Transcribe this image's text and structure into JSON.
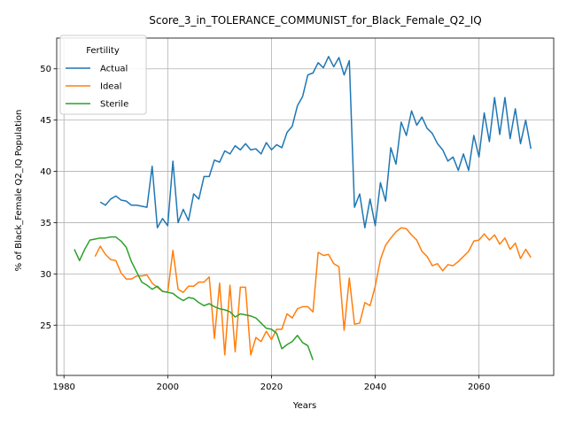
{
  "chart_data": {
    "type": "line",
    "title": "Score_3_in_TOLERANCE_COMMUNIST_for_Black_Female_Q2_IQ",
    "xlabel": "Years",
    "ylabel": "% of Black_Female Q2_IQ Population",
    "xlim": [
      1978.6,
      2074.4
    ],
    "ylim": [
      20.1,
      53.0
    ],
    "xticks": [
      1980,
      2000,
      2020,
      2040,
      2060
    ],
    "yticks": [
      25,
      30,
      35,
      40,
      45,
      50
    ],
    "grid": true,
    "legend": {
      "title": "Fertility",
      "position": "top-left"
    },
    "series": [
      {
        "name": "Actual",
        "color": "#1f77b4",
        "points": [
          [
            1987,
            37.0
          ],
          [
            1988,
            36.7
          ],
          [
            1989,
            37.3
          ],
          [
            1990,
            37.6
          ],
          [
            1991,
            37.2
          ],
          [
            1992,
            37.1
          ],
          [
            1993,
            36.7
          ],
          [
            1994,
            36.7
          ],
          [
            1995,
            36.6
          ],
          [
            1996,
            36.5
          ],
          [
            1997,
            40.5
          ],
          [
            1998,
            34.5
          ],
          [
            1999,
            35.4
          ],
          [
            2000,
            34.7
          ],
          [
            2001,
            41.0
          ],
          [
            2002,
            35.0
          ],
          [
            2003,
            36.3
          ],
          [
            2004,
            35.2
          ],
          [
            2005,
            37.8
          ],
          [
            2006,
            37.3
          ],
          [
            2007,
            39.5
          ],
          [
            2008,
            39.5
          ],
          [
            2009,
            41.1
          ],
          [
            2010,
            40.9
          ],
          [
            2011,
            42.0
          ],
          [
            2012,
            41.7
          ],
          [
            2013,
            42.5
          ],
          [
            2014,
            42.1
          ],
          [
            2015,
            42.7
          ],
          [
            2016,
            42.1
          ],
          [
            2017,
            42.2
          ],
          [
            2018,
            41.7
          ],
          [
            2019,
            42.8
          ],
          [
            2020,
            42.1
          ],
          [
            2021,
            42.6
          ],
          [
            2022,
            42.3
          ],
          [
            2023,
            43.8
          ],
          [
            2024,
            44.4
          ],
          [
            2025,
            46.4
          ],
          [
            2026,
            47.3
          ],
          [
            2027,
            49.4
          ],
          [
            2028,
            49.6
          ],
          [
            2029,
            50.6
          ],
          [
            2030,
            50.1
          ],
          [
            2031,
            51.2
          ],
          [
            2032,
            50.2
          ],
          [
            2033,
            51.1
          ],
          [
            2034,
            49.4
          ],
          [
            2035,
            50.8
          ],
          [
            2036,
            36.5
          ],
          [
            2037,
            37.8
          ],
          [
            2038,
            34.5
          ],
          [
            2039,
            37.3
          ],
          [
            2040,
            34.7
          ],
          [
            2041,
            38.9
          ],
          [
            2042,
            37.1
          ],
          [
            2043,
            42.3
          ],
          [
            2044,
            40.7
          ],
          [
            2045,
            44.8
          ],
          [
            2046,
            43.5
          ],
          [
            2047,
            45.9
          ],
          [
            2048,
            44.5
          ],
          [
            2049,
            45.3
          ],
          [
            2050,
            44.2
          ],
          [
            2051,
            43.7
          ],
          [
            2052,
            42.7
          ],
          [
            2053,
            42.1
          ],
          [
            2054,
            41.0
          ],
          [
            2055,
            41.4
          ],
          [
            2056,
            40.1
          ],
          [
            2057,
            41.7
          ],
          [
            2058,
            40.1
          ],
          [
            2059,
            43.5
          ],
          [
            2060,
            41.4
          ],
          [
            2061,
            45.7
          ],
          [
            2062,
            42.9
          ],
          [
            2063,
            47.2
          ],
          [
            2064,
            43.6
          ],
          [
            2065,
            47.2
          ],
          [
            2066,
            43.2
          ],
          [
            2067,
            46.1
          ],
          [
            2068,
            42.7
          ],
          [
            2069,
            45.0
          ],
          [
            2070,
            42.2
          ]
        ]
      },
      {
        "name": "Ideal",
        "color": "#ff7f0e",
        "points": [
          [
            1986,
            31.7
          ],
          [
            1987,
            32.7
          ],
          [
            1988,
            31.9
          ],
          [
            1989,
            31.4
          ],
          [
            1990,
            31.3
          ],
          [
            1991,
            30.1
          ],
          [
            1992,
            29.5
          ],
          [
            1993,
            29.5
          ],
          [
            1994,
            29.8
          ],
          [
            1995,
            29.8
          ],
          [
            1996,
            29.9
          ],
          [
            1997,
            29.1
          ],
          [
            1998,
            28.7
          ],
          [
            1999,
            28.3
          ],
          [
            2000,
            28.2
          ],
          [
            2001,
            32.3
          ],
          [
            2002,
            28.5
          ],
          [
            2003,
            28.2
          ],
          [
            2004,
            28.8
          ],
          [
            2005,
            28.8
          ],
          [
            2006,
            29.2
          ],
          [
            2007,
            29.2
          ],
          [
            2008,
            29.7
          ],
          [
            2009,
            23.7
          ],
          [
            2010,
            29.1
          ],
          [
            2011,
            22.1
          ],
          [
            2012,
            28.9
          ],
          [
            2013,
            22.4
          ],
          [
            2014,
            28.7
          ],
          [
            2015,
            28.7
          ],
          [
            2016,
            22.1
          ],
          [
            2017,
            23.8
          ],
          [
            2018,
            23.4
          ],
          [
            2019,
            24.4
          ],
          [
            2020,
            23.6
          ],
          [
            2021,
            24.6
          ],
          [
            2022,
            24.6
          ],
          [
            2023,
            26.1
          ],
          [
            2024,
            25.7
          ],
          [
            2025,
            26.6
          ],
          [
            2026,
            26.8
          ],
          [
            2027,
            26.8
          ],
          [
            2028,
            26.3
          ],
          [
            2029,
            32.1
          ],
          [
            2030,
            31.8
          ],
          [
            2031,
            31.9
          ],
          [
            2032,
            31.0
          ],
          [
            2033,
            30.7
          ],
          [
            2034,
            24.5
          ],
          [
            2035,
            29.6
          ],
          [
            2036,
            25.1
          ],
          [
            2037,
            25.2
          ],
          [
            2038,
            27.2
          ],
          [
            2039,
            26.9
          ],
          [
            2040,
            28.8
          ],
          [
            2041,
            31.4
          ],
          [
            2042,
            32.8
          ],
          [
            2043,
            33.5
          ],
          [
            2044,
            34.1
          ],
          [
            2045,
            34.5
          ],
          [
            2046,
            34.4
          ],
          [
            2047,
            33.8
          ],
          [
            2048,
            33.3
          ],
          [
            2049,
            32.2
          ],
          [
            2050,
            31.7
          ],
          [
            2051,
            30.8
          ],
          [
            2052,
            31.0
          ],
          [
            2053,
            30.3
          ],
          [
            2054,
            30.9
          ],
          [
            2055,
            30.8
          ],
          [
            2056,
            31.2
          ],
          [
            2057,
            31.7
          ],
          [
            2058,
            32.2
          ],
          [
            2059,
            33.2
          ],
          [
            2060,
            33.3
          ],
          [
            2061,
            33.9
          ],
          [
            2062,
            33.3
          ],
          [
            2063,
            33.8
          ],
          [
            2064,
            32.9
          ],
          [
            2065,
            33.5
          ],
          [
            2066,
            32.4
          ],
          [
            2067,
            33.0
          ],
          [
            2068,
            31.5
          ],
          [
            2069,
            32.4
          ],
          [
            2070,
            31.6
          ]
        ]
      },
      {
        "name": "Sterile",
        "color": "#2ca02c",
        "points": [
          [
            1982,
            32.4
          ],
          [
            1983,
            31.3
          ],
          [
            1984,
            32.4
          ],
          [
            1985,
            33.3
          ],
          [
            1986,
            33.4
          ],
          [
            1987,
            33.5
          ],
          [
            1988,
            33.5
          ],
          [
            1989,
            33.6
          ],
          [
            1990,
            33.6
          ],
          [
            1991,
            33.2
          ],
          [
            1992,
            32.6
          ],
          [
            1993,
            31.2
          ],
          [
            1994,
            30.2
          ],
          [
            1995,
            29.2
          ],
          [
            1996,
            28.9
          ],
          [
            1997,
            28.5
          ],
          [
            1998,
            28.8
          ],
          [
            1999,
            28.3
          ],
          [
            2000,
            28.2
          ],
          [
            2001,
            28.1
          ],
          [
            2002,
            27.7
          ],
          [
            2003,
            27.4
          ],
          [
            2004,
            27.7
          ],
          [
            2005,
            27.6
          ],
          [
            2006,
            27.2
          ],
          [
            2007,
            26.9
          ],
          [
            2008,
            27.1
          ],
          [
            2009,
            26.8
          ],
          [
            2010,
            26.6
          ],
          [
            2011,
            26.5
          ],
          [
            2012,
            26.3
          ],
          [
            2013,
            25.8
          ],
          [
            2014,
            26.1
          ],
          [
            2015,
            26.0
          ],
          [
            2016,
            25.9
          ],
          [
            2017,
            25.7
          ],
          [
            2018,
            25.2
          ],
          [
            2019,
            24.7
          ],
          [
            2020,
            24.6
          ],
          [
            2021,
            24.2
          ],
          [
            2022,
            22.7
          ],
          [
            2023,
            23.1
          ],
          [
            2024,
            23.4
          ],
          [
            2025,
            24.0
          ],
          [
            2026,
            23.3
          ],
          [
            2027,
            23.0
          ],
          [
            2028,
            21.6
          ]
        ]
      }
    ]
  }
}
